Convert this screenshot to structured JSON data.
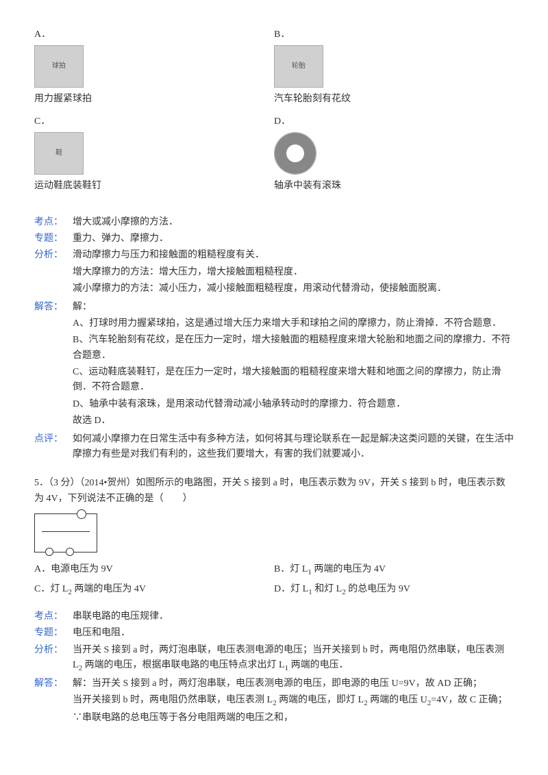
{
  "q4": {
    "options": [
      {
        "letter": "A．",
        "caption": "用力握紧球拍",
        "imgAlt": "球拍"
      },
      {
        "letter": "B．",
        "caption": "汽车轮胎刻有花纹",
        "imgAlt": "轮胎"
      },
      {
        "letter": "C．",
        "caption": "运动鞋底装鞋钉",
        "imgAlt": "鞋"
      },
      {
        "letter": "D．",
        "caption": "轴承中装有滚珠",
        "imgAlt": "轴承"
      }
    ],
    "kaodian_label": "考点：",
    "kaodian_body": "增大或减小摩擦的方法．",
    "zhuanti_label": "专题：",
    "zhuanti_body": "重力、弹力、摩擦力．",
    "fenxi_label": "分析：",
    "fenxi_lines": [
      "滑动摩擦力与压力和接触面的粗糙程度有关．",
      "增大摩擦力的方法：增大压力，增大接触面粗糙程度．",
      "减小摩擦力的方法：减小压力，减小接触面粗糙程度，用滚动代替滑动，使接触面脱离．"
    ],
    "jieda_label": "解答：",
    "jieda_lines": [
      "解：",
      "A、打球时用力握紧球拍，这是通过增大压力来增大手和球拍之间的摩擦力，防止滑掉．不符合题意．",
      "B、汽车轮胎刻有花纹，是在压力一定时，增大接触面的粗糙程度来增大轮胎和地面之间的摩擦力．不符合题意．",
      "C、运动鞋底装鞋钉，是在压力一定时，增大接触面的粗糙程度来增大鞋和地面之间的摩擦力，防止滑倒．不符合题意．",
      "D、轴承中装有滚珠，是用滚动代替滑动减小轴承转动时的摩擦力．符合题意．",
      "故选 D．"
    ],
    "dianping_label": "点评：",
    "dianping_body": "如何减小摩擦力在日常生活中有多种方法，如何将其与理论联系在一起是解决这类问题的关键，在生活中摩擦力有些是对我们有利的，这些我们要增大，有害的我们就要减小．"
  },
  "q5": {
    "stem": "5．（3 分）（2014•贺州）如图所示的电路图，开关 S 接到 a 时，电压表示数为 9V，开关 S 接到 b 时，电压表示数为 4V，下列说法不正确的是（　　）",
    "options": [
      {
        "letter": "A．",
        "text": "电源电压为 9V"
      },
      {
        "letter": "B．",
        "text_html": "灯 L<sub>1</sub> 两端的电压为 4V"
      },
      {
        "letter": "C．",
        "text_html": "灯 L<sub>2</sub> 两端的电压为 4V"
      },
      {
        "letter": "D．",
        "text_html": "灯 L<sub>1</sub> 和灯 L<sub>2</sub> 的总电压为 9V"
      }
    ],
    "kaodian_label": "考点：",
    "kaodian_body": "串联电路的电压规律．",
    "zhuanti_label": "专题：",
    "zhuanti_body": "电压和电阻．",
    "fenxi_label": "分析：",
    "fenxi_body_html": "当开关 S 接到 a 时，两灯泡串联，电压表测电源的电压；当开关接到 b 时，两电阻仍然串联，电压表测 L<sub>2</sub> 两端的电压，根据串联电路的电压特点求出灯 L<sub>1</sub> 两端的电压．",
    "jieda_label": "解答：",
    "jieda_lines_html": [
      "解：当开关 S 接到 a 时，两灯泡串联，电压表测电源的电压，即电源的电压 U=9V，故 AD 正确；",
      "当开关接到 b 时，两电阻仍然串联，电压表测 L<sub>2</sub> 两端的电压，即灯 L<sub>2</sub> 两端的电压 U<sub>2</sub>=4V，故 C 正确；",
      "∵串联电路的总电压等于各分电阻两端的电压之和，"
    ]
  }
}
